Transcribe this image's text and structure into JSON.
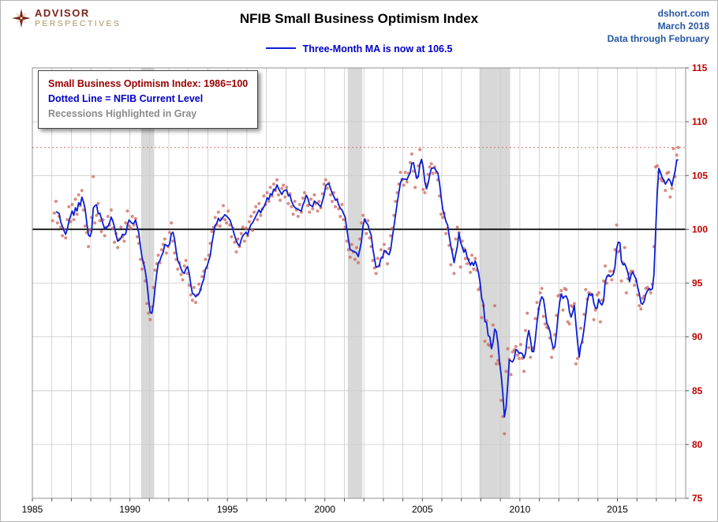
{
  "header": {
    "logo_line1": "ADVISOR",
    "logo_line2": "PERSPECTIVES",
    "title": "NFIB Small Business Optimism Index",
    "source": "dshort.com",
    "date": "March 2018",
    "note": "Data through February"
  },
  "subtitle": {
    "text": "Three-Month MA is now at 106.5"
  },
  "legend_box": {
    "line1": "Small Business Optimism Index: 1986=100",
    "line2": "Dotted Line = NFIB Current Level",
    "line3": "Recessions Highlighted in Gray"
  },
  "chart_data": {
    "type": "line",
    "title": "NFIB Small Business Optimism Index",
    "subtitle": "Three-Month MA is now at 106.5",
    "xlabel": "",
    "ylabel": "",
    "xlim": [
      1985,
      2018.5
    ],
    "ylim": [
      75,
      115
    ],
    "x_ticks": [
      1985,
      1990,
      1995,
      2000,
      2005,
      2010,
      2015
    ],
    "y_ticks": [
      75,
      80,
      85,
      90,
      95,
      100,
      105,
      110,
      115
    ],
    "grid": true,
    "legend_position": "top-left",
    "reference_line": 100,
    "current_level": 107.6,
    "ma_window": 3,
    "ma_latest": 106.5,
    "recessions": [
      [
        1990.58,
        1991.25
      ],
      [
        2001.17,
        2001.92
      ],
      [
        2007.92,
        2009.5
      ]
    ],
    "colors": {
      "ma_line": "#0B1FD4",
      "dots": "#CC6659",
      "recession": "#D8D8D8",
      "grid": "#CACACA",
      "y_label": "#C00000",
      "x_label": "#000000",
      "reference": "#000000",
      "border": "#909090"
    },
    "series": {
      "name": "NFIB Small Business Optimism Index (monthly, 1986=100)",
      "start_year": 1986,
      "start_month": 1,
      "monthly": [
        100.8,
        101.5,
        102.6,
        100.6,
        101.2,
        100.2,
        99.4,
        100.0,
        99.2,
        100.9,
        102.1,
        100.7,
        102.3,
        100.9,
        102.8,
        101.4,
        103.2,
        102.2,
        103.6,
        101.8,
        100.3,
        99.7,
        98.4,
        99.9,
        101.1,
        104.9,
        100.6,
        101.3,
        102.4,
        100.8,
        99.8,
        100.9,
        99.4,
        100.2,
        101.2,
        100.4,
        101.8,
        100.1,
        98.8,
        99.6,
        98.3,
        99.1,
        100.2,
        99.3,
        98.9,
        100.6,
        101.7,
        100.3,
        100.1,
        101.2,
        100.4,
        101.0,
        99.3,
        98.7,
        97.2,
        96.3,
        96.9,
        95.2,
        93.1,
        92.2,
        91.6,
        92.8,
        94.6,
        96.2,
        96.8,
        97.6,
        96.9,
        98.1,
        98.6,
        99.1,
        97.8,
        98.4,
        99.7,
        100.6,
        98.9,
        97.8,
        97.2,
        96.3,
        96.9,
        95.8,
        95.3,
        96.6,
        97.1,
        95.9,
        94.8,
        93.9,
        93.4,
        94.6,
        93.2,
        93.9,
        94.9,
        94.4,
        95.6,
        96.1,
        97.2,
        96.4,
        97.6,
        98.7,
        99.8,
        100.2,
        101.1,
        100.4,
        101.6,
        100.3,
        101.0,
        102.2,
        100.9,
        100.6,
        101.7,
        100.4,
        99.3,
        100.1,
        98.8,
        97.9,
        99.1,
        98.4,
        99.6,
        100.2,
        98.9,
        100.1,
        99.4,
        100.7,
        101.2,
        99.9,
        101.6,
        102.1,
        100.9,
        102.4,
        101.3,
        101.9,
        103.1,
        102.3,
        103.4,
        102.6,
        103.9,
        103.1,
        104.2,
        103.6,
        104.6,
        103.2,
        102.7,
        103.8,
        104.1,
        103.0,
        103.9,
        102.4,
        103.3,
        102.1,
        101.4,
        102.6,
        101.8,
        101.2,
        102.3,
        101.6,
        102.9,
        103.4,
        103.1,
        102.2,
        101.6,
        102.8,
        101.9,
        103.2,
        102.4,
        101.7,
        102.6,
        102.0,
        103.3,
        104.2,
        104.6,
        103.8,
        104.3,
        103.2,
        102.6,
        103.4,
        102.1,
        102.8,
        101.9,
        101.2,
        102.3,
        100.9,
        100.2,
        98.9,
        98.1,
        97.4,
        98.6,
        97.9,
        97.2,
        98.3,
        96.9,
        99.1,
        100.6,
        101.3,
        100.9,
        99.6,
        100.8,
        99.2,
        98.4,
        97.1,
        96.4,
        95.9,
        97.3,
        96.6,
        98.1,
        97.4,
        98.6,
        97.9,
        96.8,
        98.2,
        99.4,
        100.1,
        101.3,
        102.6,
        103.4,
        104.2,
        105.3,
        104.6,
        104.1,
        105.3,
        104.4,
        105.2,
        106.2,
        107.0,
        105.4,
        103.9,
        104.9,
        105.9,
        107.4,
        106.2,
        103.7,
        103.4,
        104.2,
        105.1,
        105.8,
        106.1,
        105.2,
        105.8,
        105.3,
        104.6,
        103.1,
        101.4,
        101.1,
        101.5,
        99.6,
        100.1,
        98.5,
        96.7,
        98.1,
        95.9,
        99.1,
        100.2,
        99.7,
        96.5,
        98.9,
        98.2,
        97.3,
        96.8,
        97.2,
        96.0,
        97.6,
        96.3,
        97.3,
        96.2,
        94.4,
        94.6,
        91.8,
        92.9,
        89.6,
        91.5,
        89.3,
        89.2,
        88.2,
        91.1,
        92.9,
        87.5,
        87.8,
        87.5,
        84.1,
        82.6,
        81.0,
        86.8,
        88.9,
        87.9,
        86.5,
        88.6,
        88.8,
        89.1,
        88.3,
        88.0,
        89.3,
        88.0,
        86.8,
        90.6,
        92.2,
        89.0,
        88.1,
        88.8,
        89.0,
        91.7,
        93.2,
        92.6,
        94.1,
        94.5,
        91.9,
        91.2,
        90.9,
        90.8,
        89.9,
        88.1,
        88.9,
        90.2,
        92.0,
        93.8,
        93.9,
        94.3,
        92.5,
        94.5,
        94.4,
        91.4,
        91.2,
        92.9,
        92.8,
        93.1,
        87.5,
        88.0,
        88.9,
        90.8,
        89.5,
        92.1,
        94.4,
        93.5,
        94.1,
        94.0,
        93.9,
        91.6,
        92.5,
        93.9,
        94.1,
        91.4,
        93.4,
        95.2,
        96.6,
        95.0,
        95.7,
        96.1,
        95.3,
        96.1,
        98.1,
        100.4,
        97.9,
        98.0,
        95.2,
        96.9,
        98.3,
        94.1,
        95.4,
        95.9,
        96.1,
        96.1,
        94.8,
        95.2,
        93.9,
        92.9,
        92.6,
        93.6,
        93.8,
        94.5,
        94.6,
        94.4,
        94.1,
        94.9,
        98.4,
        105.8,
        105.9,
        105.3,
        104.7,
        104.5,
        104.5,
        103.6,
        105.2,
        105.3,
        103.0,
        103.8,
        107.5,
        104.9,
        106.9,
        107.6
      ]
    }
  }
}
